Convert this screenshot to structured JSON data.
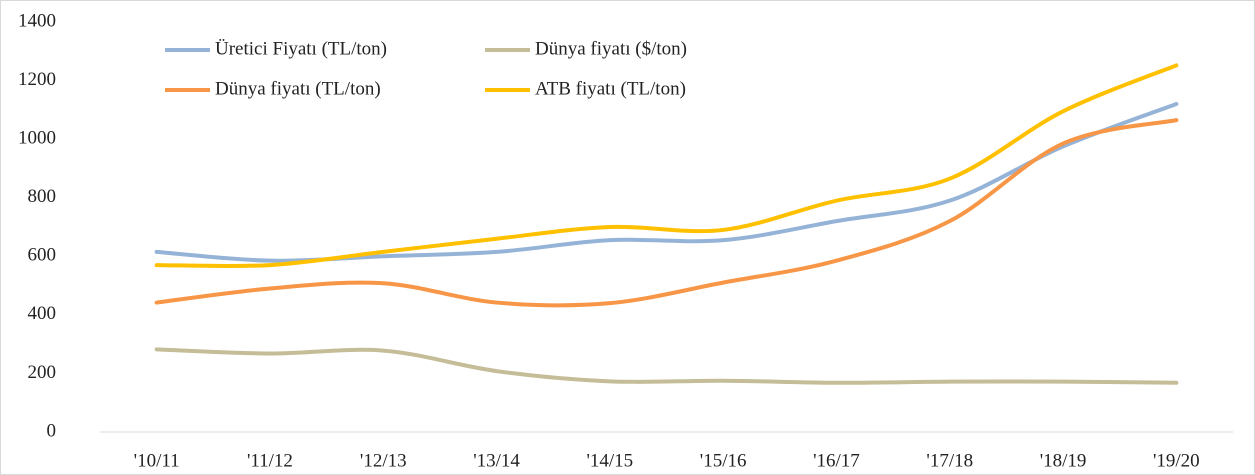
{
  "chart_data": {
    "type": "line",
    "categories": [
      "'10/11",
      "'11/12",
      "'12/13",
      "'13/14",
      "'14/15",
      "'15/16",
      "'16/17",
      "'17/18",
      "'18/19",
      "'19/20"
    ],
    "series": [
      {
        "name": "Üretici Fiyatı (TL/ton)",
        "color": "#95b3d7",
        "values": [
          615,
          585,
          600,
          615,
          655,
          655,
          720,
          790,
          975,
          1120
        ]
      },
      {
        "name": "Dünya fiyatı ($/ton)",
        "color": "#c4bd97",
        "values": [
          282,
          268,
          278,
          208,
          173,
          175,
          168,
          172,
          172,
          168
        ]
      },
      {
        "name": "Dünya fiyatı (TL/ton)",
        "color": "#f79646",
        "values": [
          442,
          490,
          508,
          442,
          440,
          510,
          585,
          720,
          985,
          1065
        ]
      },
      {
        "name": "ATB fiyatı (TL/ton)",
        "color": "#ffc000",
        "values": [
          570,
          570,
          615,
          660,
          700,
          690,
          790,
          865,
          1095,
          1252
        ]
      }
    ],
    "ylim": [
      0,
      1400
    ],
    "yticks": [
      0,
      200,
      400,
      600,
      800,
      1000,
      1200,
      1400
    ],
    "smooth": true
  }
}
